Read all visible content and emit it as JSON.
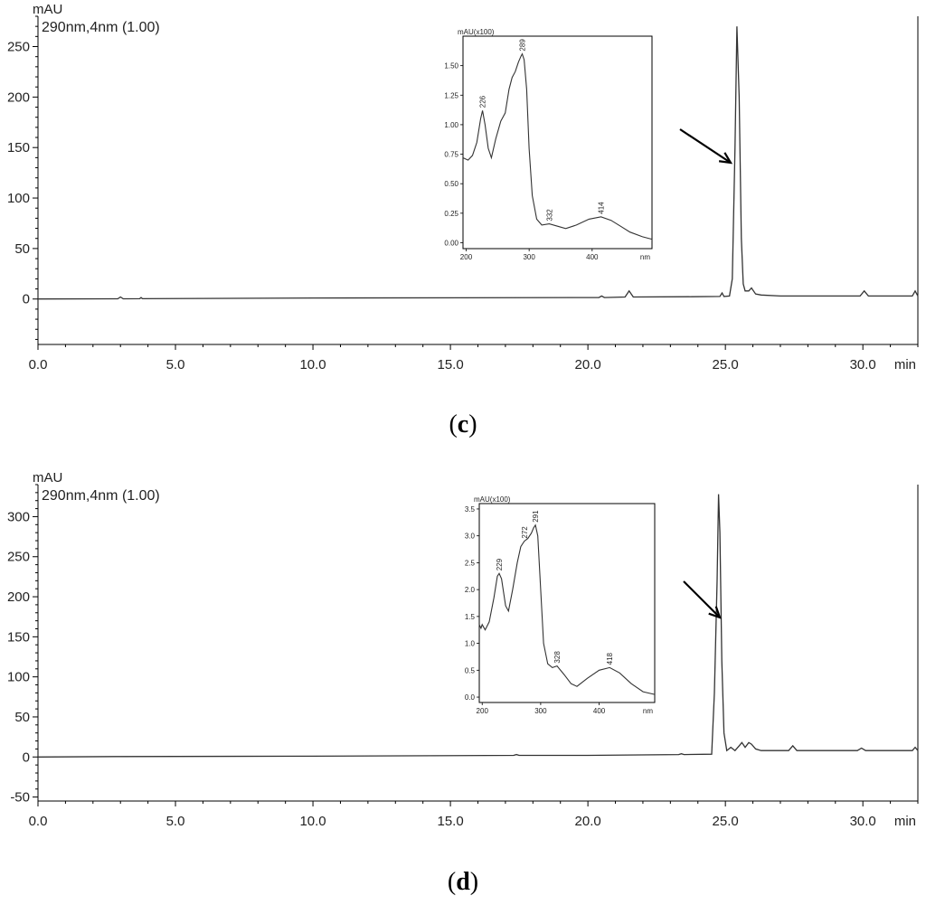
{
  "chart_data": [
    {
      "type": "line",
      "panel": "c",
      "caption_letter": "c",
      "ylabel": "mAU",
      "xlabel": "min",
      "detector_label": "290nm,4nm (1.00)",
      "xlim": [
        0,
        32
      ],
      "ylim": [
        -45,
        280
      ],
      "x_ticks": [
        0,
        5,
        10,
        15,
        20,
        25,
        30
      ],
      "x_tick_labels": [
        "0.0",
        "5.0",
        "10.0",
        "15.0",
        "20.0",
        "25.0",
        "30.0"
      ],
      "y_ticks": [
        0,
        50,
        100,
        150,
        200,
        250
      ],
      "y_tick_labels": [
        "0",
        "50",
        "100",
        "150",
        "200",
        "250"
      ],
      "series": [
        {
          "x": [
            0,
            2.9,
            3.0,
            3.1,
            3.7,
            3.75,
            3.8,
            10,
            20.4,
            20.5,
            20.6,
            21.35,
            21.5,
            21.65,
            23.8,
            24.8,
            24.88,
            24.95,
            25.15,
            25.25,
            25.35,
            25.42,
            25.5,
            25.58,
            25.65,
            25.72,
            25.85,
            25.95,
            26.1,
            26.3,
            27,
            29.9,
            30.05,
            30.2,
            31.8,
            31.9,
            32
          ],
          "y": [
            0,
            0.2,
            2,
            0.2,
            0.3,
            1.5,
            0.3,
            1,
            1.5,
            3,
            1.5,
            2,
            8,
            2,
            2.3,
            2.5,
            6,
            2.5,
            3,
            20,
            150,
            270,
            200,
            60,
            15,
            8,
            8,
            11,
            5,
            4,
            3,
            3,
            8,
            3,
            3,
            8,
            3
          ]
        }
      ],
      "inset": {
        "ylabel": "mAU(x100)",
        "xlabel": "nm",
        "xlim": [
          195,
          495
        ],
        "ylim": [
          -0.05,
          1.75
        ],
        "x_ticks": [
          200,
          300,
          400
        ],
        "x_tick_labels": [
          "200",
          "300",
          "400"
        ],
        "y_ticks": [
          0,
          0.25,
          0.5,
          0.75,
          1.0,
          1.25,
          1.5
        ],
        "y_tick_labels": [
          "0.00",
          "0.25",
          "0.50",
          "0.75",
          "1.00",
          "1.25",
          "1.50"
        ],
        "peak_labels": [
          {
            "x": 226,
            "y": 1.12,
            "text": "226"
          },
          {
            "x": 289,
            "y": 1.6,
            "text": "289"
          },
          {
            "x": 332,
            "y": 0.16,
            "text": "332"
          },
          {
            "x": 414,
            "y": 0.22,
            "text": "414"
          }
        ],
        "series": [
          {
            "x": [
              195,
              203,
              210,
              217,
              223,
              226,
              230,
              235,
              240,
              247,
              255,
              262,
              268,
              273,
              278,
              283,
              287,
              289,
              292,
              296,
              300,
              305,
              312,
              320,
              332,
              345,
              358,
              375,
              395,
              414,
              430,
              445,
              460,
              480,
              495
            ],
            "y": [
              0.72,
              0.7,
              0.74,
              0.85,
              1.05,
              1.12,
              1.0,
              0.8,
              0.72,
              0.88,
              1.03,
              1.1,
              1.3,
              1.4,
              1.45,
              1.53,
              1.58,
              1.6,
              1.55,
              1.3,
              0.8,
              0.4,
              0.2,
              0.15,
              0.16,
              0.14,
              0.12,
              0.15,
              0.2,
              0.22,
              0.19,
              0.14,
              0.09,
              0.05,
              0.03
            ]
          }
        ]
      }
    },
    {
      "type": "line",
      "panel": "d",
      "caption_letter": "d",
      "ylabel": "mAU",
      "xlabel": "min",
      "detector_label": "290nm,4nm (1.00)",
      "xlim": [
        0,
        32
      ],
      "ylim": [
        -55,
        340
      ],
      "x_ticks": [
        0,
        5,
        10,
        15,
        20,
        25,
        30
      ],
      "x_tick_labels": [
        "0.0",
        "5.0",
        "10.0",
        "15.0",
        "20.0",
        "25.0",
        "30.0"
      ],
      "y_ticks": [
        -50,
        0,
        50,
        100,
        150,
        200,
        250,
        300
      ],
      "y_tick_labels": [
        "-50",
        "0",
        "50",
        "100",
        "150",
        "200",
        "250",
        "300"
      ],
      "series": [
        {
          "x": [
            0,
            3,
            10,
            17.3,
            17.4,
            17.5,
            20,
            23.3,
            23.4,
            23.5,
            24.5,
            24.6,
            24.7,
            24.75,
            24.8,
            24.87,
            24.95,
            25.05,
            25.2,
            25.35,
            25.5,
            25.6,
            25.72,
            25.85,
            25.95,
            26.1,
            26.3,
            27.3,
            27.45,
            27.6,
            29.8,
            29.95,
            30.1,
            31.8,
            31.9,
            32
          ],
          "y": [
            0,
            0.5,
            1,
            2,
            3,
            2,
            2,
            3,
            4,
            3,
            3.5,
            80,
            220,
            328,
            280,
            120,
            30,
            8,
            12,
            8,
            14,
            18,
            12,
            18,
            16,
            10,
            8,
            8,
            14,
            8,
            8,
            11,
            8,
            8,
            12,
            8
          ]
        }
      ],
      "inset": {
        "ylabel": "mAU(x100)",
        "xlabel": "nm",
        "xlim": [
          195,
          495
        ],
        "ylim": [
          -0.1,
          3.6
        ],
        "x_ticks": [
          200,
          300,
          400
        ],
        "x_tick_labels": [
          "200",
          "300",
          "400"
        ],
        "y_ticks": [
          0,
          0.5,
          1.0,
          1.5,
          2.0,
          2.5,
          3.0,
          3.5
        ],
        "y_tick_labels": [
          "0.0",
          "0.5",
          "1.0",
          "1.5",
          "2.0",
          "2.5",
          "3.0",
          "3.5"
        ],
        "peak_labels": [
          {
            "x": 229,
            "y": 2.3,
            "text": "229"
          },
          {
            "x": 272,
            "y": 2.9,
            "text": "272"
          },
          {
            "x": 291,
            "y": 3.2,
            "text": "291"
          },
          {
            "x": 328,
            "y": 0.58,
            "text": "328"
          },
          {
            "x": 418,
            "y": 0.55,
            "text": "418"
          }
        ],
        "series": [
          {
            "x": [
              195,
              198,
              200,
              205,
              212,
              220,
              226,
              229,
              233,
              240,
              245,
              252,
              260,
              266,
              272,
              278,
              284,
              288,
              291,
              295,
              300,
              305,
              312,
              320,
              328,
              340,
              352,
              362,
              380,
              400,
              418,
              435,
              455,
              475,
              495
            ],
            "y": [
              1.35,
              1.28,
              1.35,
              1.25,
              1.4,
              1.85,
              2.25,
              2.3,
              2.2,
              1.7,
              1.6,
              2.0,
              2.5,
              2.8,
              2.9,
              2.95,
              3.05,
              3.15,
              3.2,
              3.0,
              2.0,
              1.0,
              0.62,
              0.55,
              0.58,
              0.42,
              0.25,
              0.2,
              0.35,
              0.5,
              0.55,
              0.45,
              0.25,
              0.1,
              0.05
            ]
          }
        ]
      }
    }
  ]
}
